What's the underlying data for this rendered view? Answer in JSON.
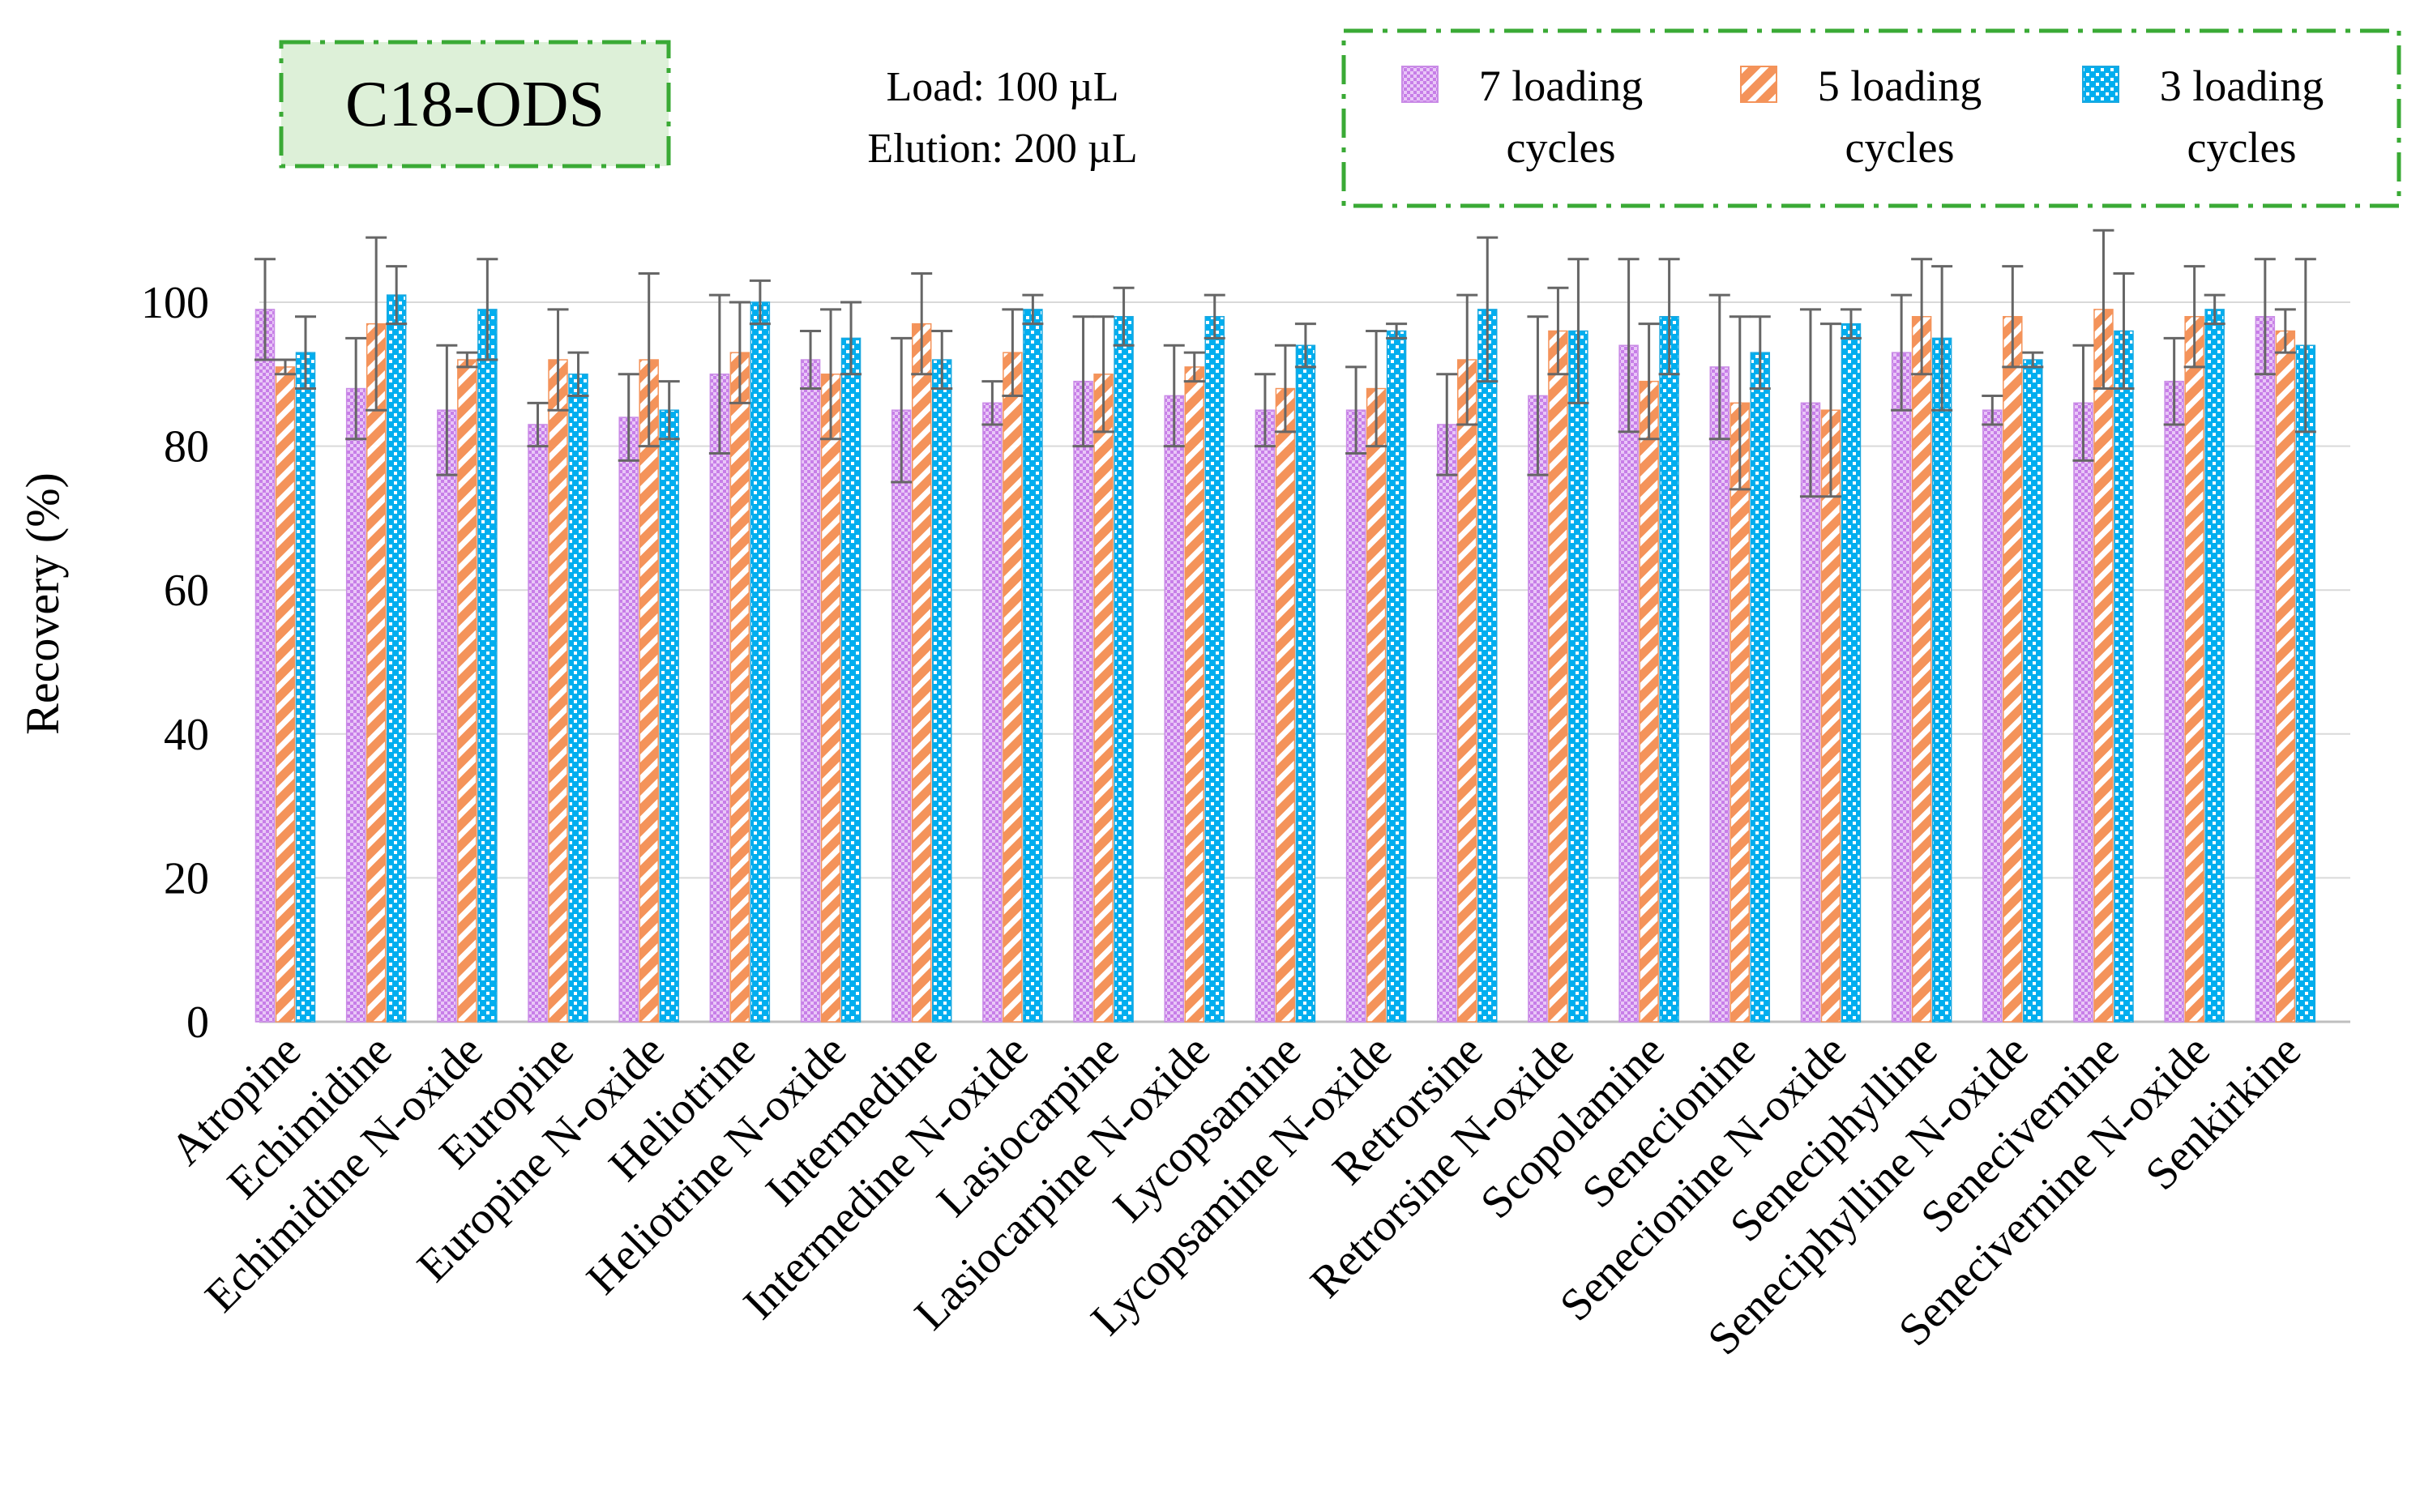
{
  "chart_data": {
    "type": "bar",
    "title": "C18-ODS",
    "annotations": [
      "Load: 100 µL",
      "Elution: 200 µL"
    ],
    "xlabel": "",
    "ylabel": "Recovery (%)",
    "ylim": [
      0,
      110
    ],
    "yticks": [
      0,
      20,
      40,
      60,
      80,
      100
    ],
    "grid": true,
    "legend_position": "top-right",
    "categories": [
      "Atropine",
      "Echimidine",
      "Echimidine N-oxide",
      "Europine",
      "Europine N-oxide",
      "Heliotrine",
      "Heliotrine N-oxide",
      "Intermedine",
      "Intermedine N-oxide",
      "Lasiocarpine",
      "Lasiocarpine N-oxide",
      "Lycopsamine",
      "Lycopsamine N-oxide",
      "Retrorsine",
      "Retrorsine N-oxide",
      "Scopolamine",
      "Senecionine",
      "Senecionine N-oxide",
      "Seneciphylline",
      "Seneciphylline N-oxide",
      "Senecivernine",
      "Senecivernine N-oxide",
      "Senkirkine"
    ],
    "series": [
      {
        "name": "7 loading cycles",
        "legend_lines": [
          "7 loading",
          "cycles"
        ],
        "color": "#cc88ee",
        "pattern": "dots",
        "values": [
          99,
          88,
          85,
          83,
          84,
          90,
          92,
          85,
          86,
          89,
          87,
          85,
          85,
          83,
          87,
          94,
          91,
          86,
          93,
          85,
          86,
          89,
          98
        ],
        "errors": [
          7,
          7,
          9,
          3,
          6,
          11,
          4,
          10,
          3,
          9,
          7,
          5,
          6,
          7,
          11,
          12,
          10,
          13,
          8,
          2,
          8,
          6,
          8
        ]
      },
      {
        "name": "5 loading cycles",
        "legend_lines": [
          "5 loading",
          "cycles"
        ],
        "color": "#f4935a",
        "pattern": "diagonal",
        "values": [
          91,
          97,
          92,
          92,
          92,
          93,
          90,
          97,
          93,
          90,
          91,
          88,
          88,
          92,
          96,
          89,
          86,
          85,
          98,
          98,
          99,
          98,
          96
        ],
        "errors": [
          1,
          12,
          1,
          7,
          12,
          7,
          9,
          7,
          6,
          8,
          2,
          6,
          8,
          9,
          6,
          8,
          12,
          12,
          8,
          7,
          11,
          7,
          3
        ]
      },
      {
        "name": "3 loading cycles",
        "legend_lines": [
          "3 loading",
          "cycles"
        ],
        "color": "#00aeef",
        "pattern": "checker",
        "values": [
          93,
          101,
          99,
          90,
          85,
          100,
          95,
          92,
          99,
          98,
          98,
          94,
          96,
          99,
          96,
          98,
          93,
          97,
          95,
          92,
          96,
          99,
          94
        ],
        "errors": [
          5,
          4,
          7,
          3,
          4,
          3,
          5,
          4,
          2,
          4,
          3,
          3,
          1,
          10,
          10,
          8,
          5,
          2,
          10,
          1,
          8,
          2,
          12
        ]
      }
    ]
  }
}
